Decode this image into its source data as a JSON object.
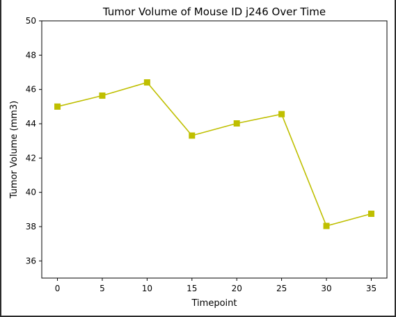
{
  "chart_data": {
    "type": "line",
    "title": "Tumor Volume of Mouse ID j246 Over Time",
    "xlabel": "Timepoint",
    "ylabel": "Tumor Volume (mm3)",
    "x": [
      0,
      5,
      10,
      15,
      20,
      25,
      30,
      35
    ],
    "series": [
      {
        "values": [
          45.0,
          45.64,
          46.41,
          43.31,
          44.02,
          44.56,
          38.04,
          38.75
        ],
        "color": "#bfbf00",
        "marker": "square"
      }
    ],
    "xlim": [
      -1.75,
      36.75
    ],
    "ylim": [
      35,
      50
    ],
    "xticks": [
      "0",
      "5",
      "10",
      "15",
      "20",
      "25",
      "30",
      "35"
    ],
    "yticks": [
      "36",
      "38",
      "40",
      "42",
      "44",
      "46",
      "48",
      "50"
    ],
    "grid": false,
    "legend": "none"
  }
}
